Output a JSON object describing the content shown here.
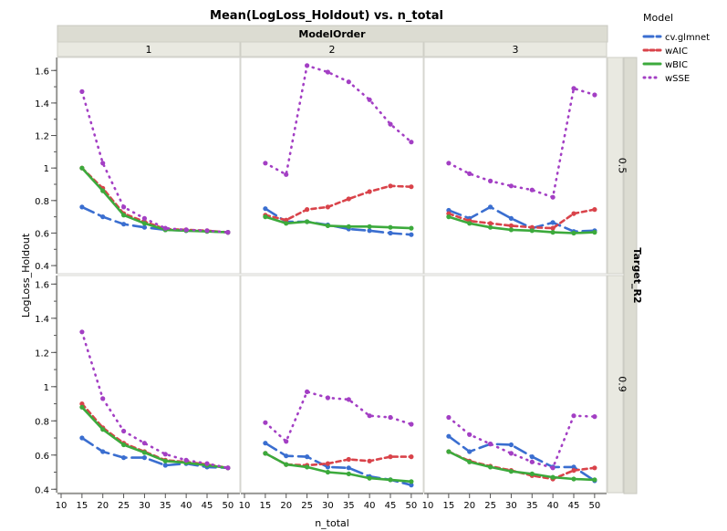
{
  "chart_data": {
    "type": "line",
    "title": "Mean(LogLoss_Holdout) vs. n_total",
    "xlabel": "n_total",
    "ylabel": "LogLoss_Holdout",
    "column_group_label": "ModelOrder",
    "row_group_label": "Target_R2",
    "columns": [
      "1",
      "2",
      "3"
    ],
    "rows": [
      "0.5",
      "0.9"
    ],
    "x": [
      15,
      20,
      25,
      30,
      35,
      40,
      45,
      50
    ],
    "x_ticks": [
      10,
      15,
      20,
      25,
      30,
      35,
      40,
      45,
      50
    ],
    "xlim": [
      10,
      52
    ],
    "ylim_by_row": [
      [
        0.35,
        1.68
      ],
      [
        0.38,
        1.65
      ]
    ],
    "y_ticks_by_row": [
      [
        0.4,
        0.6,
        0.8,
        1,
        1.2,
        1.4,
        1.6
      ],
      [
        0.4,
        0.6,
        0.8,
        1,
        1.2,
        1.4,
        1.6
      ]
    ],
    "legend": {
      "title": "Model",
      "placement": "top-right"
    },
    "series": [
      {
        "name": "cv.glmnet",
        "color": "#3a6ed0",
        "dash": "longdash"
      },
      {
        "name": "wAIC",
        "color": "#d9434a",
        "dash": "dash"
      },
      {
        "name": "wBIC",
        "color": "#3caa3c",
        "dash": "solid"
      },
      {
        "name": "wSSE",
        "color": "#a33fc4",
        "dash": "dot"
      }
    ],
    "panels": [
      {
        "row": "0.5",
        "column": "1",
        "values": {
          "cv.glmnet": [
            0.76,
            0.7,
            0.655,
            0.635,
            0.62,
            0.615,
            0.612,
            0.605
          ],
          "wAIC": [
            1.0,
            0.875,
            0.72,
            0.67,
            0.625,
            0.62,
            0.615,
            0.605
          ],
          "wBIC": [
            1.0,
            0.86,
            0.71,
            0.66,
            0.62,
            0.615,
            0.61,
            0.605
          ],
          "wSSE": [
            1.47,
            1.03,
            0.76,
            0.69,
            0.63,
            0.62,
            0.615,
            0.605
          ]
        }
      },
      {
        "row": "0.5",
        "column": "2",
        "values": {
          "cv.glmnet": [
            0.75,
            0.67,
            0.67,
            0.65,
            0.625,
            0.615,
            0.6,
            0.59
          ],
          "wAIC": [
            0.71,
            0.68,
            0.745,
            0.76,
            0.81,
            0.855,
            0.89,
            0.885
          ],
          "wBIC": [
            0.7,
            0.66,
            0.67,
            0.645,
            0.64,
            0.64,
            0.635,
            0.63
          ],
          "wSSE": [
            1.03,
            0.96,
            1.63,
            1.59,
            1.53,
            1.42,
            1.27,
            1.16
          ]
        }
      },
      {
        "row": "0.5",
        "column": "3",
        "values": {
          "cv.glmnet": [
            0.74,
            0.69,
            0.76,
            0.69,
            0.63,
            0.665,
            0.61,
            0.615
          ],
          "wAIC": [
            0.72,
            0.675,
            0.66,
            0.645,
            0.635,
            0.63,
            0.72,
            0.745
          ],
          "wBIC": [
            0.7,
            0.66,
            0.635,
            0.62,
            0.615,
            0.605,
            0.6,
            0.605
          ],
          "wSSE": [
            1.03,
            0.965,
            0.92,
            0.89,
            0.865,
            0.82,
            1.49,
            1.45
          ]
        }
      },
      {
        "row": "0.9",
        "column": "1",
        "values": {
          "cv.glmnet": [
            0.7,
            0.62,
            0.585,
            0.585,
            0.54,
            0.55,
            0.53,
            0.525
          ],
          "wAIC": [
            0.9,
            0.76,
            0.67,
            0.62,
            0.57,
            0.56,
            0.545,
            0.525
          ],
          "wBIC": [
            0.88,
            0.75,
            0.66,
            0.615,
            0.565,
            0.555,
            0.54,
            0.525
          ],
          "wSSE": [
            1.32,
            0.93,
            0.74,
            0.67,
            0.605,
            0.57,
            0.55,
            0.525
          ]
        }
      },
      {
        "row": "0.9",
        "column": "2",
        "values": {
          "cv.glmnet": [
            0.67,
            0.595,
            0.59,
            0.53,
            0.525,
            0.475,
            0.455,
            0.425
          ],
          "wAIC": [
            0.61,
            0.545,
            0.54,
            0.55,
            0.575,
            0.565,
            0.59,
            0.59
          ],
          "wBIC": [
            0.61,
            0.545,
            0.53,
            0.5,
            0.49,
            0.465,
            0.455,
            0.445
          ],
          "wSSE": [
            0.79,
            0.68,
            0.97,
            0.935,
            0.925,
            0.83,
            0.82,
            0.78
          ]
        }
      },
      {
        "row": "0.9",
        "column": "3",
        "values": {
          "cv.glmnet": [
            0.71,
            0.62,
            0.665,
            0.66,
            0.59,
            0.53,
            0.53,
            0.45
          ],
          "wAIC": [
            0.62,
            0.565,
            0.535,
            0.51,
            0.48,
            0.46,
            0.51,
            0.525
          ],
          "wBIC": [
            0.62,
            0.56,
            0.53,
            0.505,
            0.49,
            0.47,
            0.46,
            0.455
          ],
          "wSSE": [
            0.82,
            0.72,
            0.665,
            0.61,
            0.56,
            0.525,
            0.83,
            0.825
          ]
        }
      }
    ]
  }
}
